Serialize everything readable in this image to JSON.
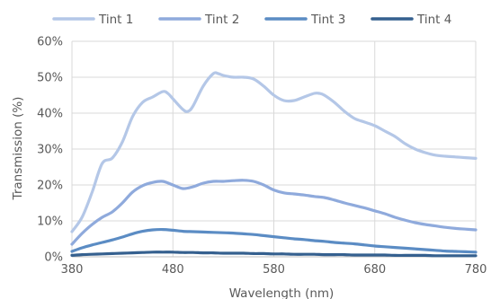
{
  "chart_data": {
    "type": "line",
    "title": "",
    "xlabel": "Wavelength (nm)",
    "ylabel": "Transmission (%)",
    "xlim": [
      380,
      780
    ],
    "ylim": [
      0,
      0.6
    ],
    "xticks": [
      "380",
      "480",
      "580",
      "680",
      "780"
    ],
    "xtick_values": [
      380,
      480,
      580,
      680,
      780
    ],
    "yticks": [
      "0%",
      "10%",
      "20%",
      "30%",
      "40%",
      "50%",
      "60%"
    ],
    "ytick_values": [
      0,
      0.1,
      0.2,
      0.3,
      0.4,
      0.5,
      0.6
    ],
    "grid": "horizontal",
    "legend_position": "top",
    "series": [
      {
        "name": "Tint 1",
        "color": "#b4c7e7",
        "x": [
          380,
          390,
          400,
          410,
          420,
          430,
          440,
          450,
          460,
          470,
          475,
          480,
          490,
          495,
          500,
          510,
          520,
          525,
          530,
          540,
          550,
          560,
          570,
          580,
          590,
          600,
          610,
          620,
          625,
          630,
          640,
          650,
          660,
          670,
          680,
          690,
          700,
          710,
          720,
          730,
          740,
          750,
          760,
          770,
          780
        ],
        "values": [
          0.07,
          0.11,
          0.18,
          0.26,
          0.275,
          0.32,
          0.39,
          0.43,
          0.445,
          0.46,
          0.455,
          0.44,
          0.41,
          0.405,
          0.42,
          0.475,
          0.51,
          0.51,
          0.505,
          0.5,
          0.5,
          0.495,
          0.475,
          0.45,
          0.435,
          0.435,
          0.445,
          0.455,
          0.455,
          0.45,
          0.43,
          0.405,
          0.385,
          0.375,
          0.365,
          0.35,
          0.335,
          0.315,
          0.3,
          0.29,
          0.283,
          0.28,
          0.278,
          0.276,
          0.274
        ]
      },
      {
        "name": "Tint 2",
        "color": "#8faadc",
        "x": [
          380,
          390,
          400,
          410,
          420,
          430,
          440,
          450,
          460,
          470,
          480,
          490,
          500,
          510,
          520,
          530,
          540,
          550,
          560,
          570,
          580,
          590,
          600,
          610,
          620,
          630,
          640,
          650,
          660,
          670,
          680,
          690,
          700,
          710,
          720,
          730,
          740,
          750,
          760,
          770,
          780
        ],
        "values": [
          0.035,
          0.065,
          0.09,
          0.11,
          0.125,
          0.15,
          0.18,
          0.198,
          0.207,
          0.21,
          0.2,
          0.19,
          0.195,
          0.205,
          0.21,
          0.21,
          0.212,
          0.213,
          0.21,
          0.2,
          0.186,
          0.178,
          0.175,
          0.172,
          0.168,
          0.165,
          0.158,
          0.15,
          0.143,
          0.136,
          0.128,
          0.12,
          0.11,
          0.102,
          0.095,
          0.09,
          0.086,
          0.082,
          0.079,
          0.077,
          0.075
        ]
      },
      {
        "name": "Tint 3",
        "color": "#5b8cc4",
        "x": [
          380,
          390,
          400,
          410,
          420,
          430,
          440,
          450,
          460,
          470,
          480,
          490,
          500,
          510,
          520,
          530,
          540,
          550,
          560,
          570,
          580,
          590,
          600,
          610,
          620,
          630,
          640,
          650,
          660,
          670,
          680,
          690,
          700,
          710,
          720,
          730,
          740,
          750,
          760,
          770,
          780
        ],
        "values": [
          0.015,
          0.025,
          0.033,
          0.04,
          0.047,
          0.055,
          0.064,
          0.071,
          0.075,
          0.076,
          0.074,
          0.071,
          0.07,
          0.069,
          0.068,
          0.067,
          0.066,
          0.064,
          0.062,
          0.059,
          0.056,
          0.053,
          0.05,
          0.048,
          0.045,
          0.043,
          0.04,
          0.038,
          0.036,
          0.033,
          0.03,
          0.028,
          0.026,
          0.024,
          0.022,
          0.02,
          0.018,
          0.016,
          0.015,
          0.014,
          0.013
        ]
      },
      {
        "name": "Tint 4",
        "color": "#35608f",
        "x": [
          380,
          390,
          400,
          410,
          420,
          430,
          440,
          450,
          460,
          470,
          480,
          490,
          500,
          510,
          520,
          530,
          540,
          550,
          560,
          570,
          580,
          590,
          600,
          610,
          620,
          630,
          640,
          650,
          660,
          670,
          680,
          690,
          700,
          710,
          720,
          730,
          740,
          750,
          760,
          770,
          780
        ],
        "values": [
          0.004,
          0.006,
          0.007,
          0.008,
          0.009,
          0.01,
          0.011,
          0.012,
          0.013,
          0.013,
          0.013,
          0.012,
          0.012,
          0.011,
          0.011,
          0.01,
          0.01,
          0.01,
          0.009,
          0.009,
          0.008,
          0.008,
          0.007,
          0.007,
          0.007,
          0.006,
          0.006,
          0.006,
          0.005,
          0.005,
          0.005,
          0.005,
          0.004,
          0.004,
          0.004,
          0.004,
          0.003,
          0.003,
          0.003,
          0.003,
          0.003
        ]
      }
    ]
  }
}
